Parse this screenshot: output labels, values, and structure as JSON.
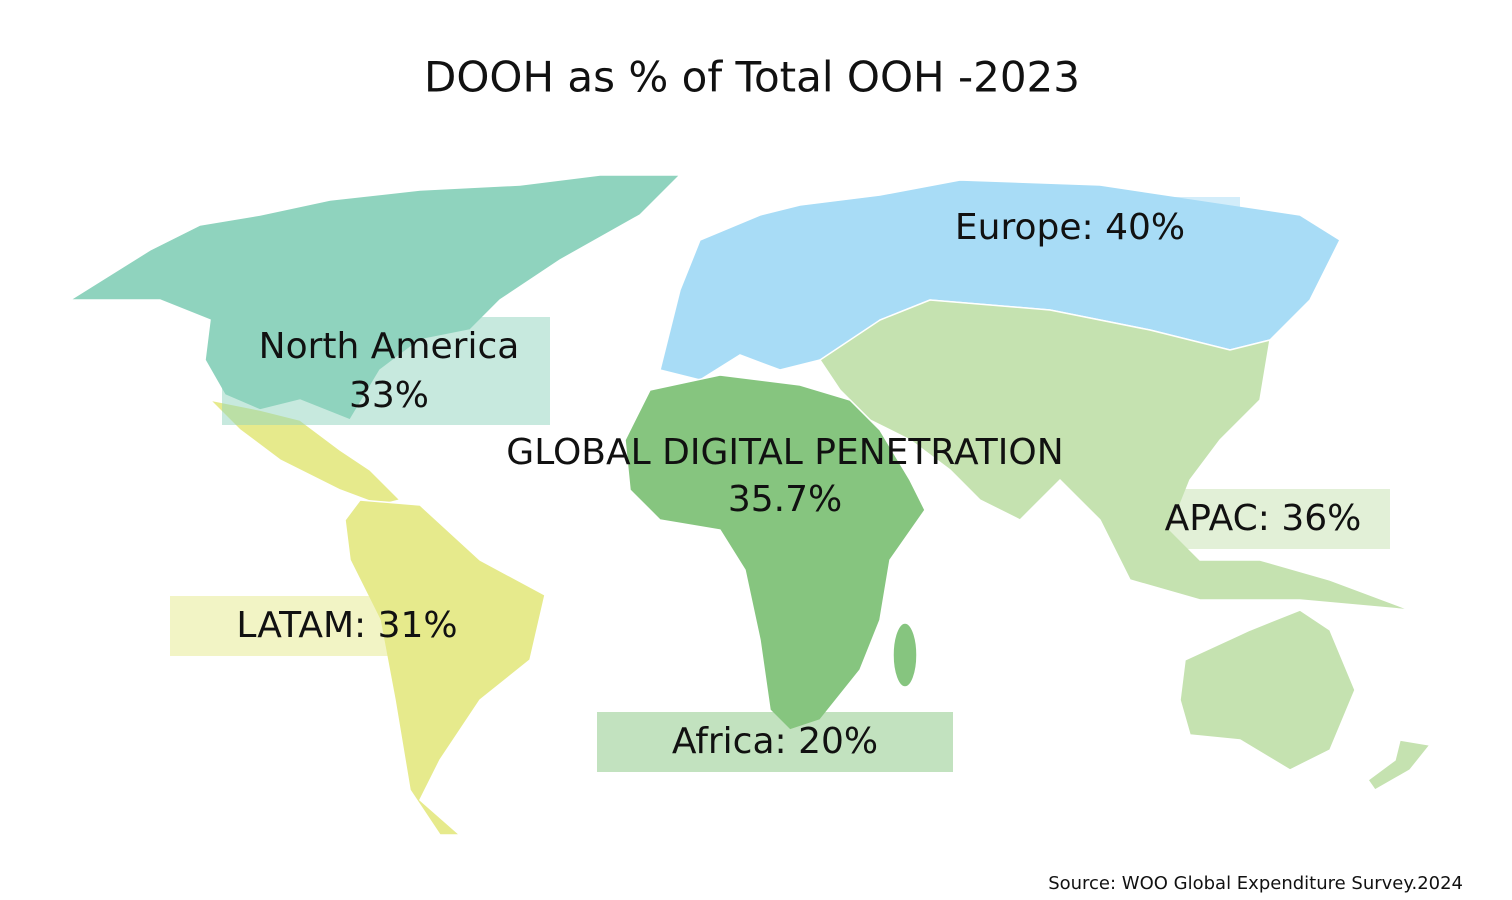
{
  "title": "DOOH as % of Total OOH -2023",
  "regions": [
    {
      "lines": [
        "North America",
        "33%"
      ],
      "color": "#8fd3be"
    },
    {
      "lines": [
        "Europe: 40%"
      ],
      "color": "#a8dcf6"
    },
    {
      "lines": [
        "APAC: 36%"
      ],
      "color": "#c5e2b0"
    },
    {
      "lines": [
        "LATAM: 31%"
      ],
      "color": "#e6ea8c"
    },
    {
      "lines": [
        "Africa: 20%"
      ],
      "color": "#86c57f"
    }
  ],
  "global": {
    "lines": [
      "GLOBAL DIGITAL PENETRATION",
      "35.7%"
    ]
  },
  "source": "Source: WOO Global Expenditure Survey.2024"
}
